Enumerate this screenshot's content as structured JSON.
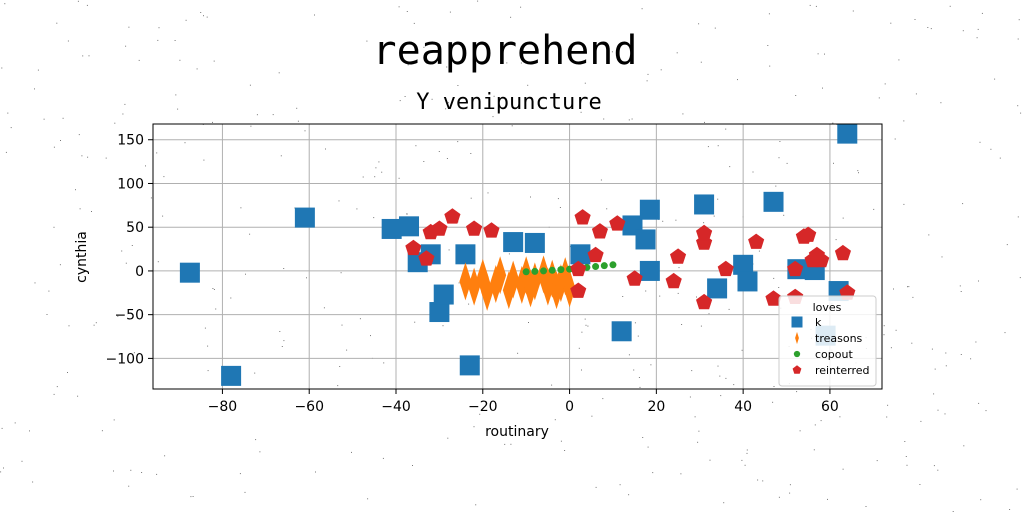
{
  "chart_data": {
    "type": "scatter",
    "title": "reapprehend",
    "subtitle": "Y venipuncture",
    "xlabel": "routinary",
    "ylabel": "cynthia",
    "xlim": [
      -96,
      72
    ],
    "ylim": [
      -135,
      168
    ],
    "xticks": [
      -80,
      -60,
      -40,
      -20,
      0,
      20,
      40,
      60
    ],
    "yticks": [
      -100,
      -50,
      0,
      50,
      100,
      150
    ],
    "xtick_labels": [
      "−80",
      "−60",
      "−40",
      "−20",
      "0",
      "20",
      "40",
      "60"
    ],
    "ytick_labels": [
      "−100",
      "−50",
      "0",
      "50",
      "100",
      "150"
    ],
    "grid": true,
    "legend": {
      "title": "loves",
      "position": "lower-right"
    },
    "series": [
      {
        "name": "k",
        "marker": "square",
        "color": "#1f77b4",
        "points": [
          [
            -87.5,
            -2
          ],
          [
            -78,
            -120
          ],
          [
            -61,
            61
          ],
          [
            -41,
            48
          ],
          [
            -37,
            51
          ],
          [
            -35,
            10
          ],
          [
            -32,
            19
          ],
          [
            -30,
            -47
          ],
          [
            -29,
            -27
          ],
          [
            -24,
            19
          ],
          [
            -23,
            -108
          ],
          [
            -13,
            33
          ],
          [
            -8,
            32
          ],
          [
            2.5,
            19
          ],
          [
            12,
            -69
          ],
          [
            14.5,
            52
          ],
          [
            17.5,
            36
          ],
          [
            18.5,
            70
          ],
          [
            18.5,
            0
          ],
          [
            31,
            76
          ],
          [
            34,
            -20
          ],
          [
            40,
            7
          ],
          [
            41,
            -12
          ],
          [
            47,
            79
          ],
          [
            52.5,
            2
          ],
          [
            56.5,
            1
          ],
          [
            59,
            -74
          ],
          [
            62,
            -23
          ],
          [
            64,
            157
          ]
        ]
      },
      {
        "name": "treasons",
        "marker": "thin_diamond",
        "color": "#ff7f0e",
        "points": [
          [
            -24,
            -12
          ],
          [
            -22,
            -18
          ],
          [
            -20,
            -8
          ],
          [
            -19,
            -24
          ],
          [
            -17,
            -15
          ],
          [
            -16,
            -5
          ],
          [
            -14,
            -22
          ],
          [
            -13,
            -10
          ],
          [
            -11,
            -16
          ],
          [
            -10,
            -5
          ],
          [
            -9,
            -20
          ],
          [
            -8,
            -12
          ],
          [
            -6,
            -4
          ],
          [
            -5,
            -18
          ],
          [
            -4,
            -9
          ],
          [
            -3,
            -22
          ],
          [
            -2,
            -14
          ],
          [
            -1,
            -6
          ],
          [
            0,
            -20
          ]
        ]
      },
      {
        "name": "copout",
        "marker": "circle",
        "color": "#2ca02c",
        "points": [
          [
            -10,
            -1
          ],
          [
            -8,
            -0.5
          ],
          [
            -6,
            0
          ],
          [
            -4,
            0.8
          ],
          [
            -2,
            1.5
          ],
          [
            0,
            2
          ],
          [
            2,
            3
          ],
          [
            4,
            4
          ],
          [
            6,
            5
          ],
          [
            8,
            6
          ],
          [
            10,
            7
          ]
        ]
      },
      {
        "name": "reinterred",
        "marker": "pentagon",
        "color": "#d62728",
        "points": [
          [
            -36,
            26
          ],
          [
            -33,
            14
          ],
          [
            -32,
            44
          ],
          [
            -30,
            48
          ],
          [
            -27,
            62
          ],
          [
            -22,
            48
          ],
          [
            -18,
            46
          ],
          [
            2,
            -23
          ],
          [
            2,
            2
          ],
          [
            3,
            61
          ],
          [
            6,
            18
          ],
          [
            7,
            45
          ],
          [
            11,
            54
          ],
          [
            15,
            -9
          ],
          [
            24,
            -12
          ],
          [
            25,
            16
          ],
          [
            31,
            -36
          ],
          [
            31,
            32
          ],
          [
            31,
            43
          ],
          [
            36,
            2
          ],
          [
            43,
            33
          ],
          [
            47,
            -32
          ],
          [
            52,
            -30
          ],
          [
            52,
            2
          ],
          [
            54,
            39
          ],
          [
            55,
            41
          ],
          [
            56,
            12
          ],
          [
            57,
            18
          ],
          [
            58,
            12
          ],
          [
            63,
            20
          ],
          [
            64,
            -25
          ]
        ]
      }
    ]
  }
}
